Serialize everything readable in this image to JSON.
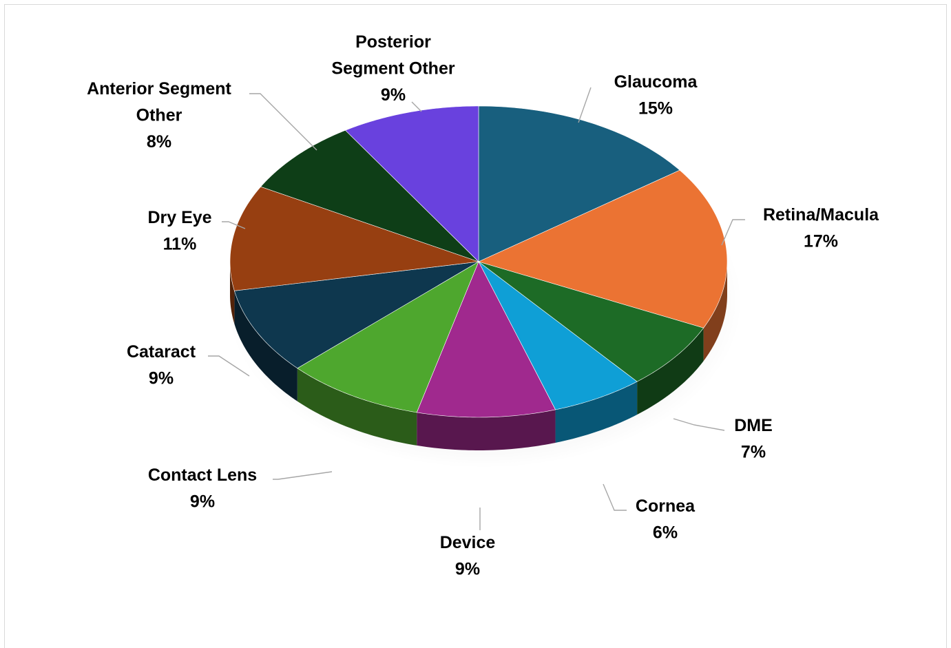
{
  "chart_data": {
    "type": "pie",
    "style": "3d",
    "title": "",
    "slices": [
      {
        "name": "Glaucoma",
        "label_lines": [
          "Glaucoma"
        ],
        "value": 15,
        "pct": "15%",
        "color": "#185F7E"
      },
      {
        "name": "Retina/Macula",
        "label_lines": [
          "Retina/Macula"
        ],
        "value": 17,
        "pct": "17%",
        "color": "#EB7333"
      },
      {
        "name": "DME",
        "label_lines": [
          "DME"
        ],
        "value": 7,
        "pct": "7%",
        "color": "#1D6B26"
      },
      {
        "name": "Cornea",
        "label_lines": [
          "Cornea"
        ],
        "value": 6,
        "pct": "6%",
        "color": "#0F9FD6"
      },
      {
        "name": "Device",
        "label_lines": [
          "Device"
        ],
        "value": 9,
        "pct": "9%",
        "color": "#A0298E"
      },
      {
        "name": "Contact Lens",
        "label_lines": [
          "Contact Lens"
        ],
        "value": 9,
        "pct": "9%",
        "color": "#4EA72E"
      },
      {
        "name": "Cataract",
        "label_lines": [
          "Cataract"
        ],
        "value": 9,
        "pct": "9%",
        "color": "#0E374E"
      },
      {
        "name": "Dry Eye",
        "label_lines": [
          "Dry Eye"
        ],
        "value": 11,
        "pct": "11%",
        "color": "#973F11"
      },
      {
        "name": "Anterior Segment Other",
        "label_lines": [
          "Anterior Segment",
          "Other"
        ],
        "value": 8,
        "pct": "8%",
        "color": "#0E3E17"
      },
      {
        "name": "Posterior Segment Other",
        "label_lines": [
          "Posterior",
          "Segment Other"
        ],
        "value": 9,
        "pct": "9%",
        "color": "#6941DE"
      }
    ],
    "start_angle": "12 o'clock",
    "direction": "clockwise",
    "legend": "none",
    "data_labels": "outside with leader lines"
  }
}
